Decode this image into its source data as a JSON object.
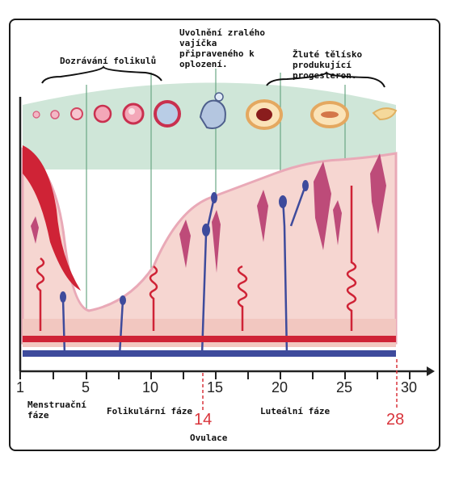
{
  "labels": {
    "follicle": "Dozrávání folikulů",
    "ovulation_release": "Uvolnění zralého vajíčka připraveného k oplození.",
    "corpus_luteum": "Žluté tělísko produkující progesteron.",
    "menstrual_phase": "Menstruační fáze",
    "follicular_phase": "Folikulární fáze",
    "ovulation": "Ovulace",
    "luteal_phase": "Luteální fáze"
  },
  "axis": {
    "ticks": [
      "1",
      "5",
      "10",
      "15",
      "20",
      "25",
      "30"
    ],
    "marker_ovulation": "14",
    "marker_end": "28"
  },
  "colors": {
    "green_band": "#cfe6d8",
    "tissue": "#f6d6d1",
    "tissue_edge": "#e9a9b7",
    "vessel_red": "#cf2336",
    "vessel_blue": "#3e4b9c",
    "gland": "#b4336a",
    "marker": "#d9343b"
  }
}
